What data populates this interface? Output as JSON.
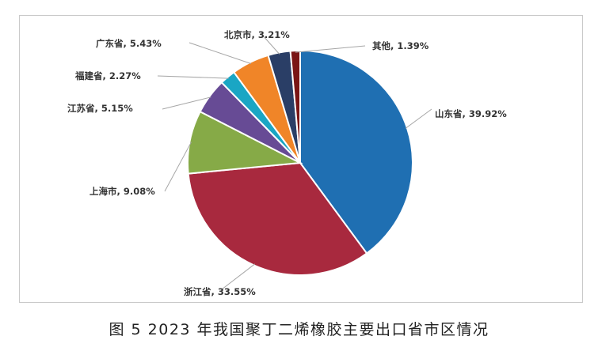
{
  "caption": "图 5  2023 年我国聚丁二烯橡胶主要出口省市区情况",
  "chart_data": {
    "type": "pie",
    "title": "",
    "slices": [
      {
        "name": "山东省",
        "value": 39.92,
        "label": "山东省, 39.92%",
        "color": "#1f6fb2"
      },
      {
        "name": "浙江省",
        "value": 33.55,
        "label": "浙江省, 33.55%",
        "color": "#a8293e"
      },
      {
        "name": "上海市",
        "value": 9.08,
        "label": "上海市, 9.08%",
        "color": "#86aa47"
      },
      {
        "name": "江苏省",
        "value": 5.15,
        "label": "江苏省, 5.15%",
        "color": "#674b95"
      },
      {
        "name": "福建省",
        "value": 2.27,
        "label": "福建省, 2.27%",
        "color": "#1aa6c4"
      },
      {
        "name": "广东省",
        "value": 5.43,
        "label": "广东省, 5.43%",
        "color": "#f08528"
      },
      {
        "name": "北京市",
        "value": 3.21,
        "label": "北京市, 3.21%",
        "color": "#2a3e66"
      },
      {
        "name": "其他",
        "value": 1.39,
        "label": "其他, 1.39%",
        "color": "#7a1515"
      }
    ]
  }
}
